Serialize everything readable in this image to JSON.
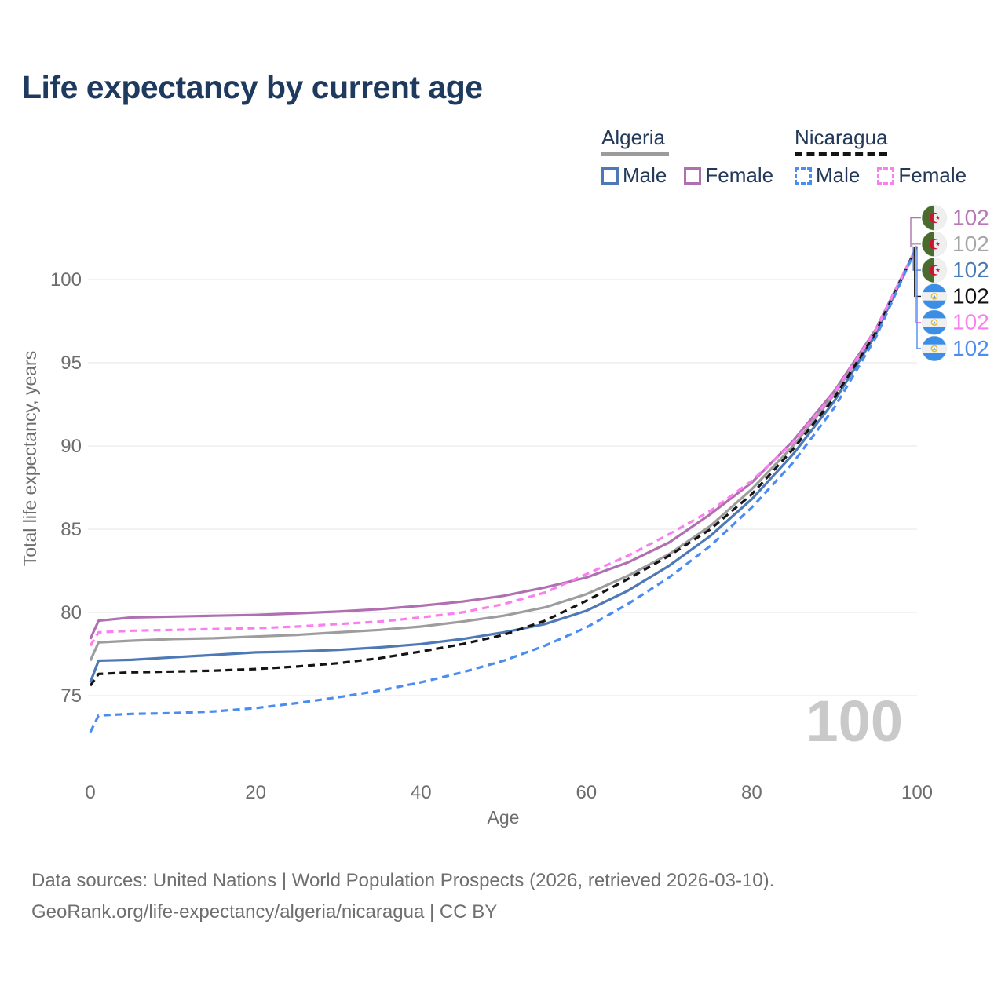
{
  "page": {
    "title": "Life expectancy by current age",
    "footer_line1": "Data sources: United Nations | World Population Prospects (2026, retrieved 2026-03-10).",
    "footer_line2": "GeoRank.org/life-expectancy/algeria/nicaragua | CC BY",
    "watermark": "100"
  },
  "legend": {
    "groups": [
      {
        "country": "Algeria",
        "line_style": "solid",
        "underline_color": "#9c9c9c",
        "items": [
          {
            "label": "Male",
            "color": "#4e79b6"
          },
          {
            "label": "Female",
            "color": "#b06fb0"
          }
        ]
      },
      {
        "country": "Nicaragua",
        "line_style": "dashed",
        "underline_color": "#141414",
        "items": [
          {
            "label": "Male",
            "color": "#4b8cf1"
          },
          {
            "label": "Female",
            "color": "#fb7ef0"
          }
        ]
      }
    ]
  },
  "chart_data": {
    "type": "line",
    "title": "Life expectancy by current age",
    "xlabel": "Age",
    "ylabel": "Total life expectancy, years",
    "xlim": [
      0,
      100
    ],
    "ylim": [
      72,
      103
    ],
    "x_ticks": [
      0,
      20,
      40,
      60,
      80,
      100
    ],
    "y_ticks": [
      75,
      80,
      85,
      90,
      95,
      100
    ],
    "grid": "horizontal",
    "legend_position": "top-right",
    "watermark": "100",
    "x": [
      0,
      1,
      5,
      10,
      15,
      20,
      25,
      30,
      35,
      40,
      45,
      50,
      55,
      60,
      65,
      70,
      75,
      80,
      85,
      90,
      95,
      100
    ],
    "series": [
      {
        "name": "Algeria Female",
        "country": "Algeria",
        "sex": "Female",
        "line_style": "solid",
        "color": "#b06fb0",
        "flag": "algeria",
        "end_label": "102",
        "label_color": "#b678b6",
        "values": [
          78.4,
          79.5,
          79.7,
          79.75,
          79.8,
          79.85,
          79.95,
          80.05,
          80.2,
          80.4,
          80.65,
          81.0,
          81.5,
          82.1,
          83.0,
          84.2,
          85.9,
          87.8,
          90.3,
          93.3,
          97.0,
          102
        ]
      },
      {
        "name": "Algeria Both sexes",
        "country": "Algeria",
        "sex": "Both",
        "line_style": "solid",
        "color": "#9d9d9d",
        "flag": "algeria",
        "end_label": "102",
        "label_color": "#a6a6a6",
        "values": [
          77.1,
          78.2,
          78.3,
          78.4,
          78.45,
          78.55,
          78.65,
          78.8,
          78.95,
          79.15,
          79.45,
          79.8,
          80.3,
          81.1,
          82.2,
          83.5,
          85.2,
          87.4,
          90.0,
          93.1,
          96.9,
          102
        ]
      },
      {
        "name": "Algeria Male",
        "country": "Algeria",
        "sex": "Male",
        "line_style": "solid",
        "color": "#4e79b6",
        "flag": "algeria",
        "end_label": "102",
        "label_color": "#4a7ab5",
        "values": [
          75.8,
          77.1,
          77.15,
          77.3,
          77.45,
          77.6,
          77.65,
          77.75,
          77.9,
          78.1,
          78.4,
          78.8,
          79.3,
          80.1,
          81.3,
          82.8,
          84.6,
          86.8,
          89.5,
          92.7,
          96.7,
          102
        ]
      },
      {
        "name": "Nicaragua Both sexes",
        "country": "Nicaragua",
        "sex": "Both",
        "line_style": "dashed",
        "color": "#141414",
        "flag": "nicaragua",
        "end_label": "102",
        "label_color": "#111111",
        "values": [
          75.6,
          76.3,
          76.4,
          76.45,
          76.5,
          76.6,
          76.75,
          76.95,
          77.25,
          77.65,
          78.1,
          78.65,
          79.5,
          80.7,
          82.0,
          83.4,
          85.0,
          87.1,
          89.8,
          92.9,
          96.8,
          102
        ]
      },
      {
        "name": "Nicaragua Female",
        "country": "Nicaragua",
        "sex": "Female",
        "line_style": "dashed",
        "color": "#fb7ef0",
        "flag": "nicaragua",
        "end_label": "102",
        "label_color": "#fb7ef0",
        "values": [
          78.0,
          78.8,
          78.9,
          78.95,
          79.0,
          79.05,
          79.15,
          79.3,
          79.45,
          79.7,
          80.0,
          80.5,
          81.2,
          82.3,
          83.4,
          84.7,
          86.1,
          87.9,
          90.2,
          93.2,
          96.95,
          102
        ]
      },
      {
        "name": "Nicaragua Male",
        "country": "Nicaragua",
        "sex": "Male",
        "line_style": "dashed",
        "color": "#4b8cf1",
        "flag": "nicaragua",
        "end_label": "102",
        "label_color": "#4b8cf1",
        "values": [
          72.8,
          73.8,
          73.9,
          73.95,
          74.05,
          74.25,
          74.55,
          74.9,
          75.3,
          75.8,
          76.4,
          77.1,
          78.0,
          79.1,
          80.5,
          82.1,
          84.0,
          86.3,
          89.0,
          92.3,
          96.5,
          102
        ]
      }
    ]
  }
}
